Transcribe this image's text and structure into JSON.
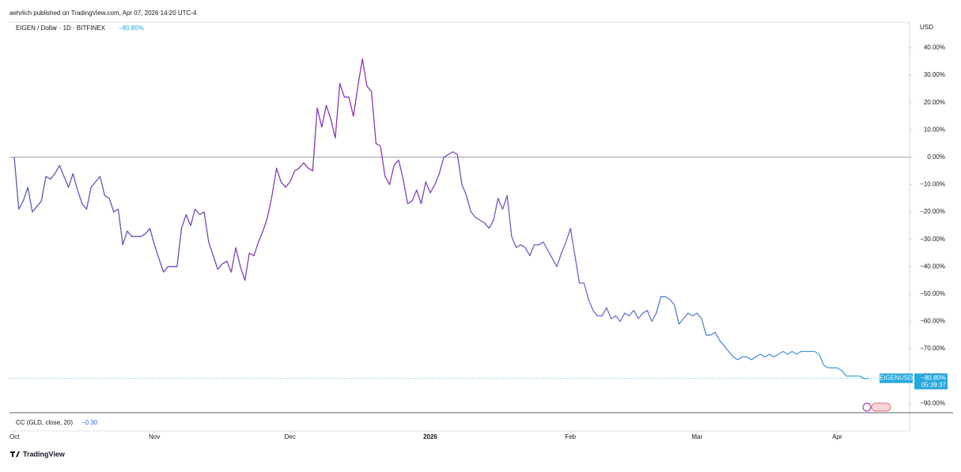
{
  "header": "aehrlich published on TradingView.com, Apr 07, 2026 14:20 UTC-4",
  "footer": "TradingView",
  "chart_data": {
    "type": "line",
    "title": "EIGEN / Dollar · 1D · BITFINEX",
    "currency": "USD",
    "symbol": "EIGENUSD",
    "last_value": -80.8,
    "last_value_label": "−80.80%",
    "countdown": "05:39:37",
    "baseline": 0,
    "line_colors": [
      "#5a5db8",
      "#8a35b8",
      "#3ea8dc"
    ],
    "indicator": {
      "name": "CC (GLD, close, 20)",
      "value": -0.3,
      "value_label": "−0.30"
    },
    "values": [
      0,
      -19,
      -16,
      -11,
      -20,
      -18,
      -16,
      -7,
      -8,
      -6,
      -3,
      -7,
      -11,
      -6,
      -12,
      -17,
      -19,
      -11,
      -9,
      -7,
      -14,
      -15,
      -20,
      -19,
      -32,
      -27,
      -29,
      -29,
      -29,
      -28,
      -26,
      -32,
      -37,
      -42,
      -40,
      -40,
      -40,
      -26,
      -21,
      -25,
      -19,
      -21,
      -20,
      -31,
      -36,
      -41,
      -39,
      -38,
      -42,
      -33,
      -40,
      -45,
      -35,
      -36,
      -31,
      -27,
      -22,
      -14,
      -4,
      -9,
      -11,
      -9,
      -5,
      -4,
      -2,
      -4,
      -5,
      18,
      11,
      19,
      14,
      7,
      27,
      22,
      22,
      15,
      26,
      36,
      26,
      24,
      5,
      4,
      -7,
      -10,
      -3,
      -1,
      -8,
      -17,
      -16,
      -12,
      -17,
      -9,
      -13,
      -10,
      -6,
      0,
      1,
      2,
      1,
      -10,
      -14,
      -20,
      -22,
      -23,
      -24,
      -26,
      -23,
      -15,
      -19,
      -14,
      -29,
      -33,
      -32,
      -33,
      -36,
      -32,
      -32,
      -31,
      -34,
      -37,
      -40,
      -35,
      -31,
      -26,
      -36,
      -46,
      -46,
      -52,
      -56,
      -58,
      -58,
      -55,
      -59,
      -58,
      -60,
      -57,
      -58,
      -56,
      -59,
      -57,
      -56,
      -60,
      -57,
      -51,
      -51,
      -52,
      -54,
      -61,
      -59,
      -57,
      -58,
      -57,
      -59,
      -65,
      -65,
      -64,
      -67,
      -69,
      -71,
      -73,
      -74,
      -73,
      -73,
      -74,
      -73,
      -72,
      -73,
      -72,
      -73,
      -72,
      -71,
      -72,
      -71,
      -72,
      -71,
      -71,
      -71,
      -71,
      -72,
      -76,
      -77,
      -77,
      -77,
      -78,
      -80,
      -80,
      -80,
      -80,
      -81,
      -80.8
    ],
    "xlim": [
      0,
      198
    ],
    "xticks": [
      {
        "value": 0,
        "label": "Oct"
      },
      {
        "value": 31,
        "label": "Nov"
      },
      {
        "value": 61,
        "label": "Dec"
      },
      {
        "value": 92,
        "label": "2026"
      },
      {
        "value": 123,
        "label": "Feb"
      },
      {
        "value": 151,
        "label": "Mar"
      },
      {
        "value": 182,
        "label": "Apr"
      }
    ],
    "ylim": [
      -93.4,
      49.4
    ],
    "yticks": [
      {
        "value": 40,
        "label": "40.00%"
      },
      {
        "value": 30,
        "label": "30.00%"
      },
      {
        "value": 20,
        "label": "20.00%"
      },
      {
        "value": 10,
        "label": "10.00%"
      },
      {
        "value": 0,
        "label": "0.00%"
      },
      {
        "value": -10,
        "label": "−10.00%"
      },
      {
        "value": -20,
        "label": "−20.00%"
      },
      {
        "value": -30,
        "label": "−30.00%"
      },
      {
        "value": -40,
        "label": "−40.00%"
      },
      {
        "value": -50,
        "label": "−50.00%"
      },
      {
        "value": -60,
        "label": "−60.00%"
      },
      {
        "value": -70,
        "label": "−70.00%"
      },
      {
        "value": -80,
        "label": "−80.00%"
      },
      {
        "value": -90,
        "label": "−90.00%"
      }
    ]
  }
}
